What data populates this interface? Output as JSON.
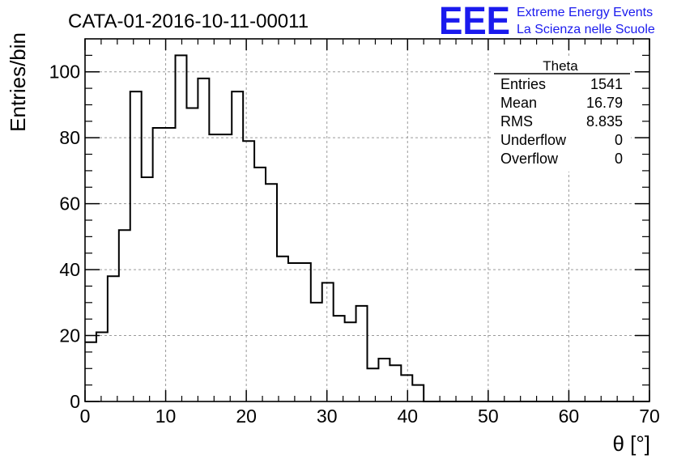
{
  "title": "CATA-01-2016-10-11-00011",
  "logo": {
    "mark": "EEE",
    "line1": "Extreme Energy Events",
    "line2": "La Scienza nelle Scuole",
    "color": "#1a1aee"
  },
  "stats": {
    "name": "Theta",
    "rows": [
      {
        "label": "Entries",
        "value": "1541"
      },
      {
        "label": "Mean",
        "value": "16.79"
      },
      {
        "label": "RMS",
        "value": "8.835"
      },
      {
        "label": "Underflow",
        "value": "0"
      },
      {
        "label": "Overflow",
        "value": "0"
      }
    ]
  },
  "chart_data": {
    "type": "bar",
    "histogram": true,
    "xlabel": "θ [°]",
    "ylabel": "Entries/bin",
    "xlim": [
      0,
      70
    ],
    "ylim": [
      0,
      110
    ],
    "x_ticks": [
      0,
      10,
      20,
      30,
      40,
      50,
      60,
      70
    ],
    "y_ticks": [
      0,
      20,
      40,
      60,
      80,
      100
    ],
    "grid": true,
    "bin_width": 1.4,
    "bin_edges_start": 0,
    "values": [
      18,
      21,
      38,
      52,
      94,
      68,
      83,
      83,
      105,
      89,
      98,
      81,
      81,
      94,
      79,
      71,
      66,
      44,
      42,
      42,
      30,
      36,
      26,
      24,
      29,
      10,
      13,
      11,
      8,
      5,
      0,
      0,
      0,
      0,
      0,
      0,
      0,
      0,
      0,
      0,
      0,
      0,
      0,
      0,
      0,
      0,
      0,
      0,
      0,
      0
    ]
  }
}
